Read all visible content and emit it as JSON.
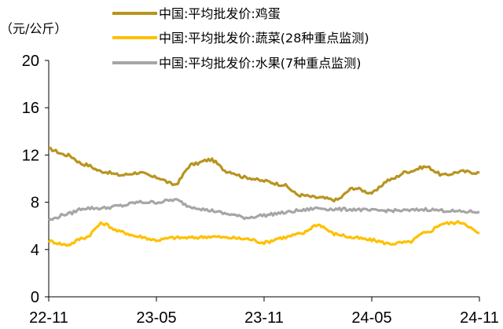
{
  "chart_data": {
    "type": "line",
    "ylabel": "（元/公斤）",
    "ylim": [
      0,
      20
    ],
    "yticks": [
      "0",
      "4",
      "8",
      "12",
      "16",
      "20"
    ],
    "x_ticks": [
      "22-11",
      "23-05",
      "23-11",
      "24-05",
      "24-11"
    ],
    "x_range": [
      "2022-11",
      "2024-11"
    ],
    "legend_position": "top",
    "grid": false,
    "series": [
      {
        "name": "中国:平均批发价:鸡蛋",
        "color": "#B8941F",
        "x": [
          "22-11",
          "22-12",
          "23-01",
          "23-02",
          "23-03",
          "23-04",
          "23-05",
          "23-06",
          "23-07",
          "23-08",
          "23-09",
          "23-10",
          "23-11",
          "23-12",
          "24-01",
          "24-02",
          "24-03",
          "24-04",
          "24-05",
          "24-06",
          "24-07",
          "24-08",
          "24-09",
          "24-10",
          "24-11"
        ],
        "values": [
          12.5,
          12.0,
          11.2,
          10.6,
          10.3,
          10.5,
          10.1,
          9.5,
          11.2,
          11.6,
          10.6,
          10.1,
          9.8,
          9.5,
          8.6,
          8.4,
          8.2,
          9.2,
          8.8,
          9.9,
          10.6,
          11.0,
          10.3,
          10.6,
          10.5
        ]
      },
      {
        "name": "中国:平均批发价:蔬菜(28种重点监测)",
        "color": "#FFC000",
        "x": [
          "22-11",
          "22-12",
          "23-01",
          "23-02",
          "23-03",
          "23-04",
          "23-05",
          "23-06",
          "23-07",
          "23-08",
          "23-09",
          "23-10",
          "23-11",
          "23-12",
          "24-01",
          "24-02",
          "24-03",
          "24-04",
          "24-05",
          "24-06",
          "24-07",
          "24-08",
          "24-09",
          "24-10",
          "24-11"
        ],
        "values": [
          4.7,
          4.4,
          5.0,
          6.2,
          5.5,
          5.1,
          4.8,
          5.0,
          5.0,
          5.1,
          5.0,
          4.9,
          4.6,
          5.0,
          5.3,
          6.1,
          5.3,
          5.0,
          4.8,
          4.5,
          4.6,
          5.4,
          6.2,
          6.3,
          5.4
        ]
      },
      {
        "name": "中国:平均批发价:水果(7种重点监测)",
        "color": "#A6A6A6",
        "x": [
          "22-11",
          "22-12",
          "23-01",
          "23-02",
          "23-03",
          "23-04",
          "23-05",
          "23-06",
          "23-07",
          "23-08",
          "23-09",
          "23-10",
          "23-11",
          "23-12",
          "24-01",
          "24-02",
          "24-03",
          "24-04",
          "24-05",
          "24-06",
          "24-07",
          "24-08",
          "24-09",
          "24-10",
          "24-11"
        ],
        "values": [
          6.5,
          7.0,
          7.5,
          7.5,
          7.7,
          8.0,
          8.0,
          8.2,
          7.6,
          7.3,
          7.0,
          6.7,
          6.9,
          7.1,
          7.3,
          7.5,
          7.4,
          7.4,
          7.3,
          7.3,
          7.3,
          7.4,
          7.3,
          7.2,
          7.2
        ]
      }
    ]
  }
}
